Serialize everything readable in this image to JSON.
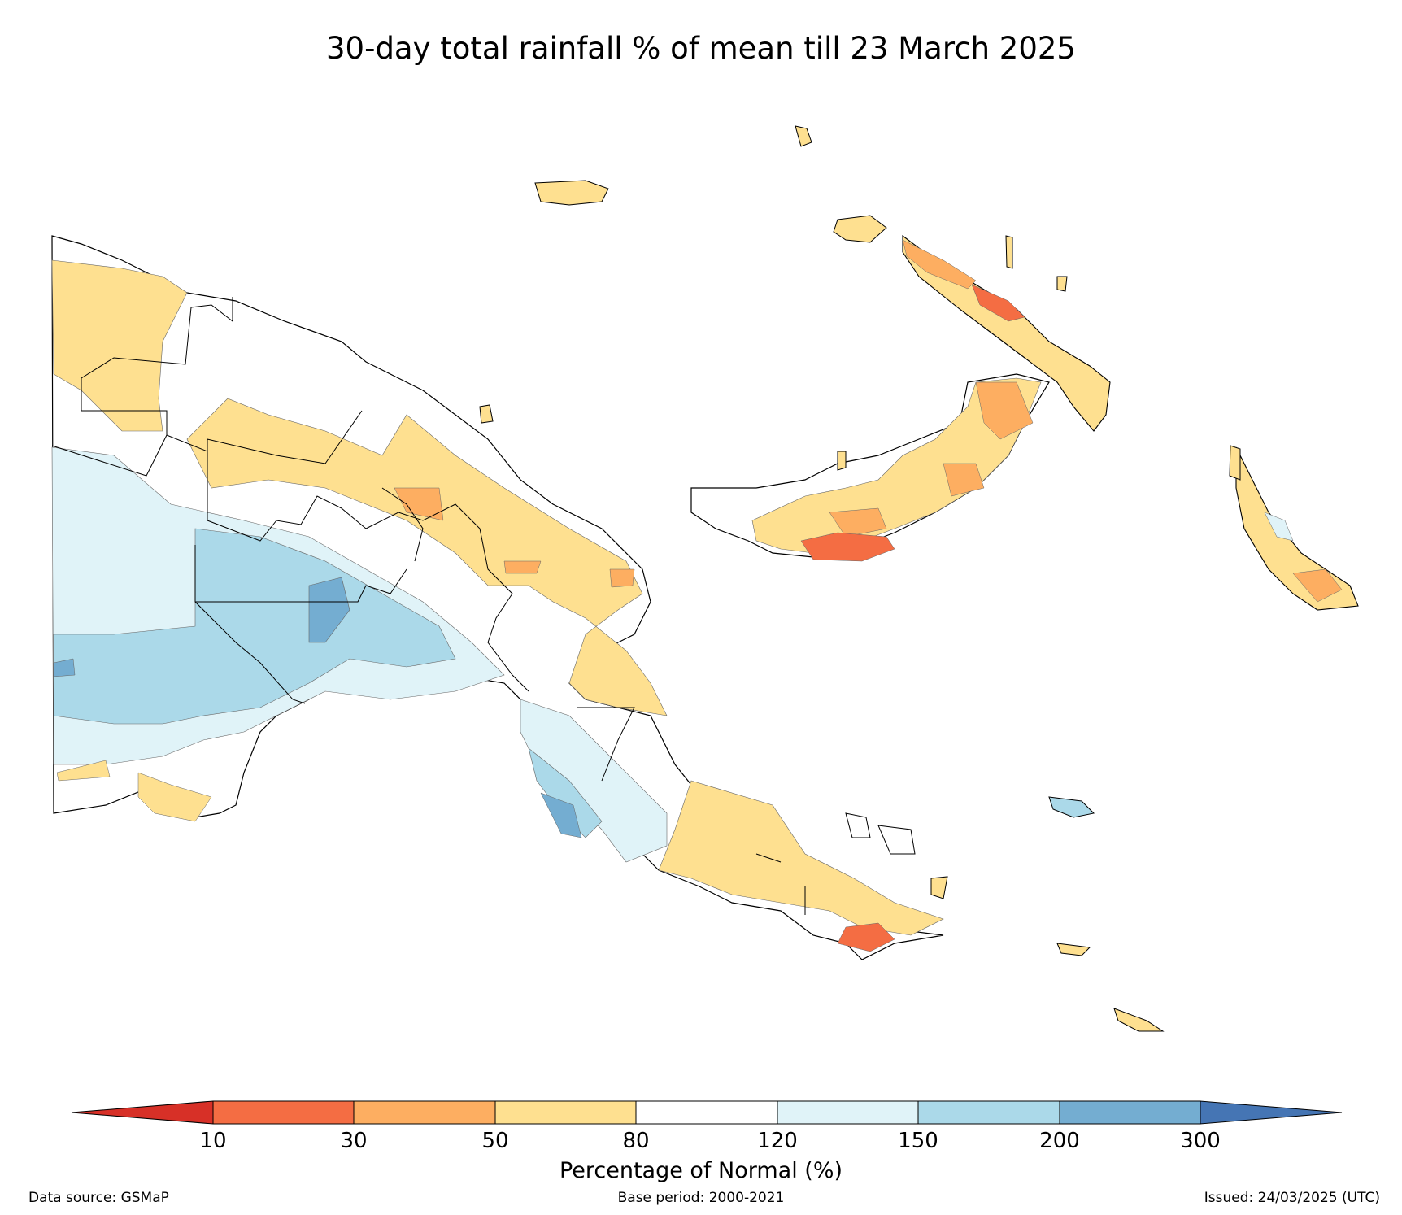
{
  "title": "30-day total rainfall % of mean till 23 March 2025",
  "legend": {
    "label": "Percentage of Normal (%)",
    "ticks": [
      "10",
      "30",
      "50",
      "80",
      "120",
      "150",
      "200",
      "300"
    ],
    "colors": [
      "#d73027",
      "#f46d43",
      "#fdae61",
      "#fee090",
      "#ffffff",
      "#e0f3f8",
      "#abd9e9",
      "#74add1",
      "#4575b4"
    ]
  },
  "footer": {
    "source": "Data source: GSMaP",
    "base_period": "Base period: 2000-2021",
    "issued": "Issued: 24/03/2025 (UTC)"
  }
}
